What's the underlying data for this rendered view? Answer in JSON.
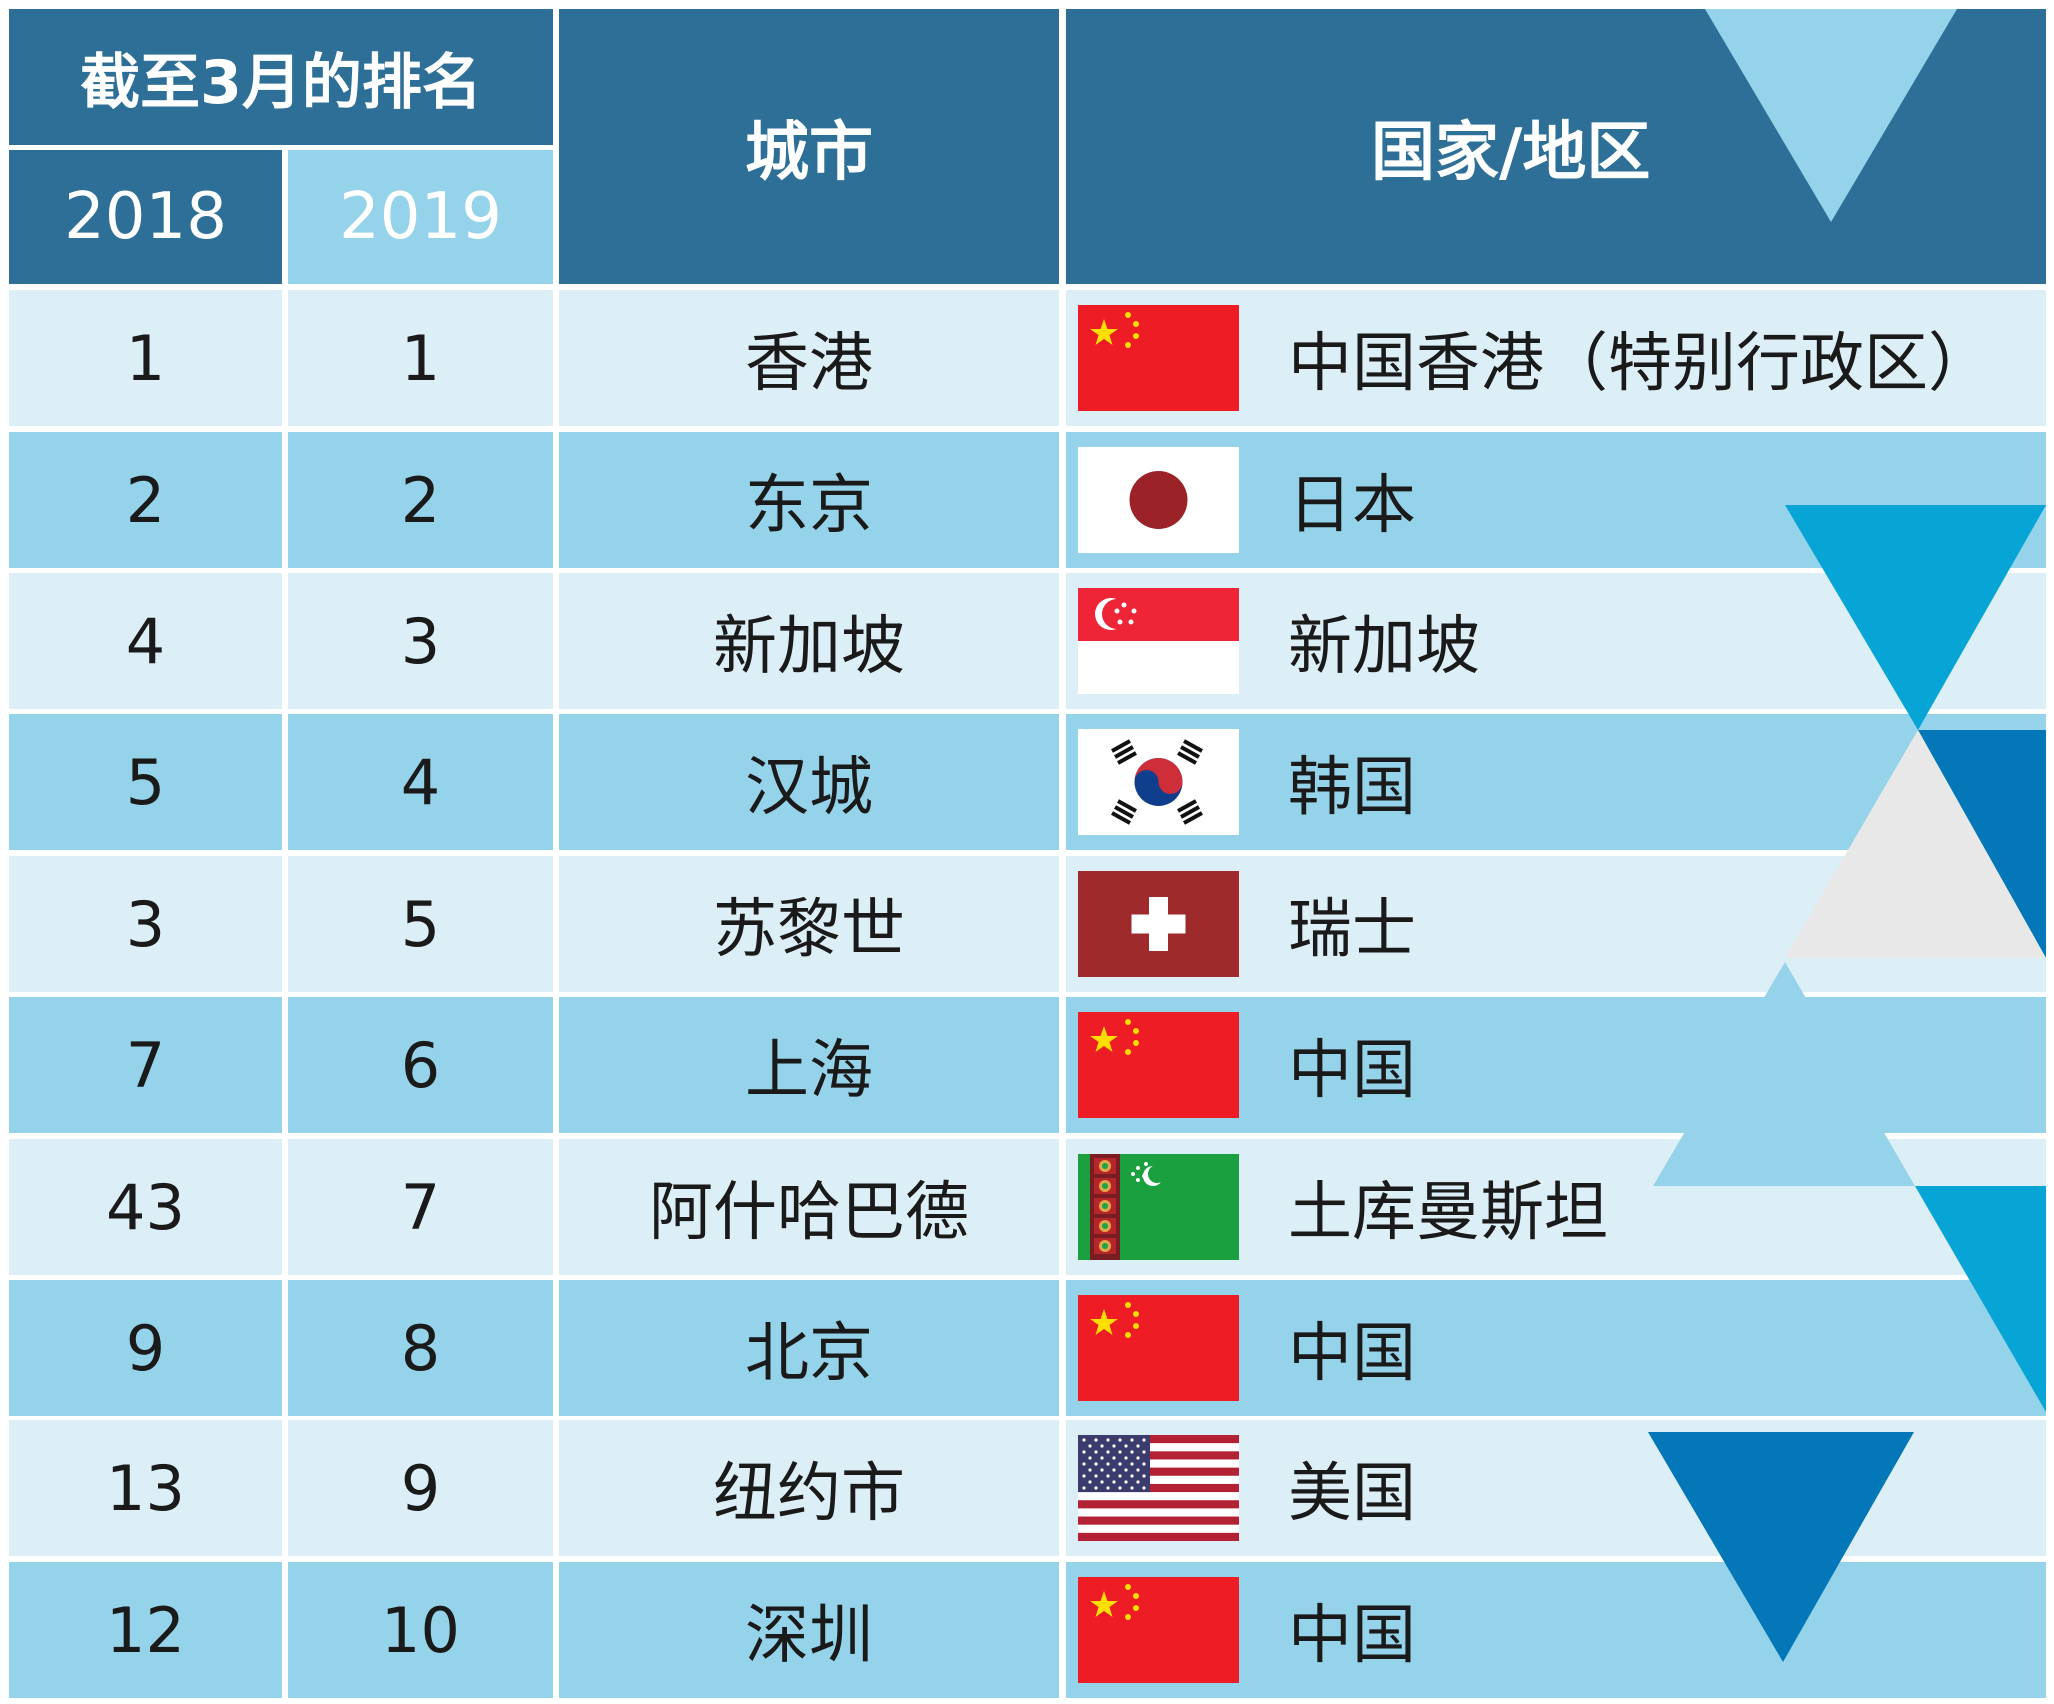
{
  "header": {
    "ranking_title": "截至3月的排名",
    "year_2018": "2018",
    "year_2019": "2019",
    "city_col": "城市",
    "country_col": "国家/地区"
  },
  "rows": [
    {
      "r2018": "1",
      "r2019": "1",
      "city": "香港",
      "country": "中国香港（特别行政区）",
      "flag": "china-flag-icon"
    },
    {
      "r2018": "2",
      "r2019": "2",
      "city": "东京",
      "country": "日本",
      "flag": "japan-flag-icon"
    },
    {
      "r2018": "4",
      "r2019": "3",
      "city": "新加坡",
      "country": "新加坡",
      "flag": "singapore-flag-icon"
    },
    {
      "r2018": "5",
      "r2019": "4",
      "city": "汉城",
      "country": "韩国",
      "flag": "south-korea-flag-icon"
    },
    {
      "r2018": "3",
      "r2019": "5",
      "city": "苏黎世",
      "country": "瑞士",
      "flag": "switzerland-flag-icon"
    },
    {
      "r2018": "7",
      "r2019": "6",
      "city": "上海",
      "country": "中国",
      "flag": "china-flag-icon"
    },
    {
      "r2018": "43",
      "r2019": "7",
      "city": "阿什哈巴德",
      "country": "土库曼斯坦",
      "flag": "turkmenistan-flag-icon"
    },
    {
      "r2018": "9",
      "r2019": "8",
      "city": "北京",
      "country": "中国",
      "flag": "china-flag-icon"
    },
    {
      "r2018": "13",
      "r2019": "9",
      "city": "纽约市",
      "country": "美国",
      "flag": "usa-flag-icon"
    },
    {
      "r2018": "12",
      "r2019": "10",
      "city": "深圳",
      "country": "中国",
      "flag": "china-flag-icon"
    }
  ],
  "colors": {
    "header_dark": "#2d6f97",
    "header_light": "#95d3ea",
    "row_light": "#dceff7",
    "row_mid": "#95d3ea"
  }
}
